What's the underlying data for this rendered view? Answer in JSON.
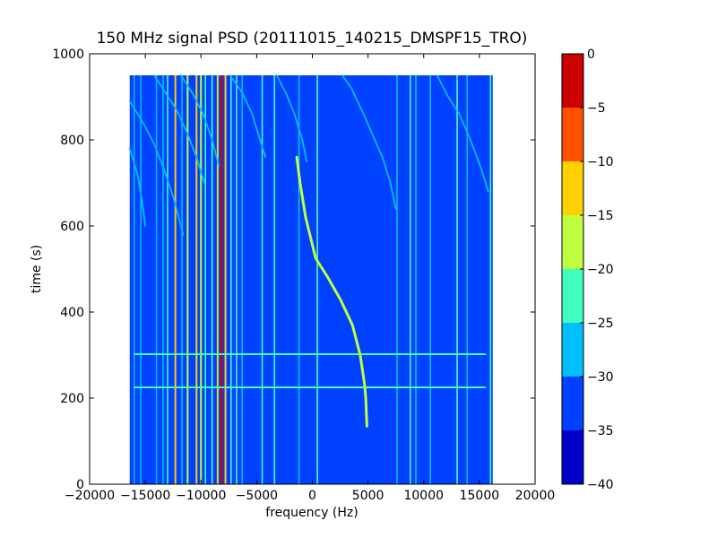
{
  "chart_data": {
    "type": "heatmap",
    "title": "150 MHz signal PSD (20111015_140215_DMSPF15_TRO)",
    "xlabel": "frequency (Hz)",
    "ylabel": "time (s)",
    "xlim": [
      -20000,
      20000
    ],
    "ylim": [
      0,
      1000
    ],
    "xticks": [
      -20000,
      -15000,
      -10000,
      -5000,
      0,
      5000,
      10000,
      15000,
      20000
    ],
    "xtick_labels": [
      "−20000",
      "−15000",
      "−10000",
      "−5000",
      "0",
      "5000",
      "10000",
      "15000",
      "20000"
    ],
    "yticks": [
      0,
      200,
      400,
      600,
      800,
      1000
    ],
    "ytick_labels": [
      "0",
      "200",
      "400",
      "600",
      "800",
      "1000"
    ],
    "data_extent": {
      "x": [
        -16400,
        16200
      ],
      "y": [
        0,
        950
      ]
    },
    "background_level": -35,
    "colorbar": {
      "levels": [
        -40,
        -35,
        -30,
        -25,
        -20,
        -15,
        -10,
        -5,
        0
      ],
      "tick_labels": [
        "−40",
        "−35",
        "−30",
        "−25",
        "−20",
        "−15",
        "−10",
        "−5",
        "0"
      ],
      "colors": [
        "#0000cd",
        "#0040ff",
        "#00bfff",
        "#40ffbf",
        "#bfff40",
        "#ffd000",
        "#ff5000",
        "#cd0000"
      ]
    },
    "vertical_lines": [
      {
        "f": -16000,
        "level": -28
      },
      {
        "f": -15400,
        "level": -30
      },
      {
        "f": -14000,
        "level": -28
      },
      {
        "f": -13400,
        "level": -28
      },
      {
        "f": -13000,
        "level": -25
      },
      {
        "f": -12300,
        "level": -15
      },
      {
        "f": -11700,
        "level": -28
      },
      {
        "f": -11200,
        "level": -20
      },
      {
        "f": -10400,
        "level": -12
      },
      {
        "f": -10000,
        "level": -20
      },
      {
        "f": -9600,
        "level": -25
      },
      {
        "f": -9000,
        "level": -25
      },
      {
        "f": -8500,
        "level": -12
      },
      {
        "f": -8150,
        "level": -5
      },
      {
        "f": -7800,
        "level": -12
      },
      {
        "f": -7300,
        "level": -22
      },
      {
        "f": -6800,
        "level": -25
      },
      {
        "f": -6300,
        "level": -28
      },
      {
        "f": -4500,
        "level": -22
      },
      {
        "f": -3400,
        "level": -22
      },
      {
        "f": -1200,
        "level": -30
      },
      {
        "f": 450,
        "level": -25
      },
      {
        "f": 7600,
        "level": -30
      },
      {
        "f": 8800,
        "level": -25
      },
      {
        "f": 9300,
        "level": -28
      },
      {
        "f": 10600,
        "level": -30
      },
      {
        "f": 13000,
        "level": -25
      },
      {
        "f": 13900,
        "level": -30
      },
      {
        "f": 16000,
        "level": -25
      }
    ],
    "horizontal_lines": [
      {
        "t": 302,
        "f_range": [
          -16000,
          15600
        ],
        "level": -25
      },
      {
        "t": 225,
        "f_range": [
          -16000,
          15600
        ],
        "level": -25
      }
    ],
    "tracks": [
      {
        "name": "main",
        "level": -20,
        "points": [
          [
            -1400,
            760
          ],
          [
            -1100,
            700
          ],
          [
            -600,
            620
          ],
          [
            300,
            525
          ],
          [
            1400,
            480
          ],
          [
            2500,
            430
          ],
          [
            3600,
            370
          ],
          [
            4300,
            300
          ],
          [
            4700,
            230
          ],
          [
            4800,
            200
          ],
          [
            4900,
            135
          ]
        ]
      },
      {
        "name": "curve-a",
        "level": -30,
        "points": [
          [
            2700,
            950
          ],
          [
            3500,
            920
          ],
          [
            4600,
            860
          ],
          [
            5600,
            800
          ],
          [
            6300,
            760
          ],
          [
            7000,
            700
          ],
          [
            7500,
            640
          ]
        ]
      },
      {
        "name": "curve-b",
        "level": -30,
        "points": [
          [
            11200,
            950
          ],
          [
            12200,
            900
          ],
          [
            13200,
            860
          ],
          [
            14200,
            800
          ],
          [
            15200,
            730
          ],
          [
            15800,
            680
          ]
        ]
      },
      {
        "name": "curve-c",
        "level": -28,
        "points": [
          [
            -16400,
            890
          ],
          [
            -15200,
            840
          ],
          [
            -14200,
            790
          ],
          [
            -13300,
            730
          ],
          [
            -12400,
            660
          ],
          [
            -11600,
            580
          ]
        ]
      },
      {
        "name": "curve-d",
        "level": -28,
        "points": [
          [
            -14200,
            950
          ],
          [
            -13200,
            910
          ],
          [
            -12200,
            870
          ],
          [
            -11300,
            820
          ],
          [
            -10400,
            760
          ],
          [
            -9700,
            700
          ]
        ]
      },
      {
        "name": "curve-e",
        "level": -28,
        "points": [
          [
            -11800,
            950
          ],
          [
            -10800,
            910
          ],
          [
            -9800,
            860
          ],
          [
            -9000,
            800
          ],
          [
            -8400,
            740
          ]
        ]
      },
      {
        "name": "curve-f",
        "level": -28,
        "points": [
          [
            -7400,
            950
          ],
          [
            -6300,
            910
          ],
          [
            -5400,
            860
          ],
          [
            -4700,
            800
          ],
          [
            -4200,
            760
          ]
        ]
      },
      {
        "name": "curve-g",
        "level": -30,
        "points": [
          [
            -3200,
            950
          ],
          [
            -2400,
            910
          ],
          [
            -1600,
            860
          ],
          [
            -900,
            800
          ],
          [
            -500,
            750
          ]
        ]
      },
      {
        "name": "curve-h",
        "level": -30,
        "points": [
          [
            -16400,
            780
          ],
          [
            -15700,
            720
          ],
          [
            -15300,
            660
          ],
          [
            -15000,
            600
          ]
        ]
      }
    ]
  }
}
